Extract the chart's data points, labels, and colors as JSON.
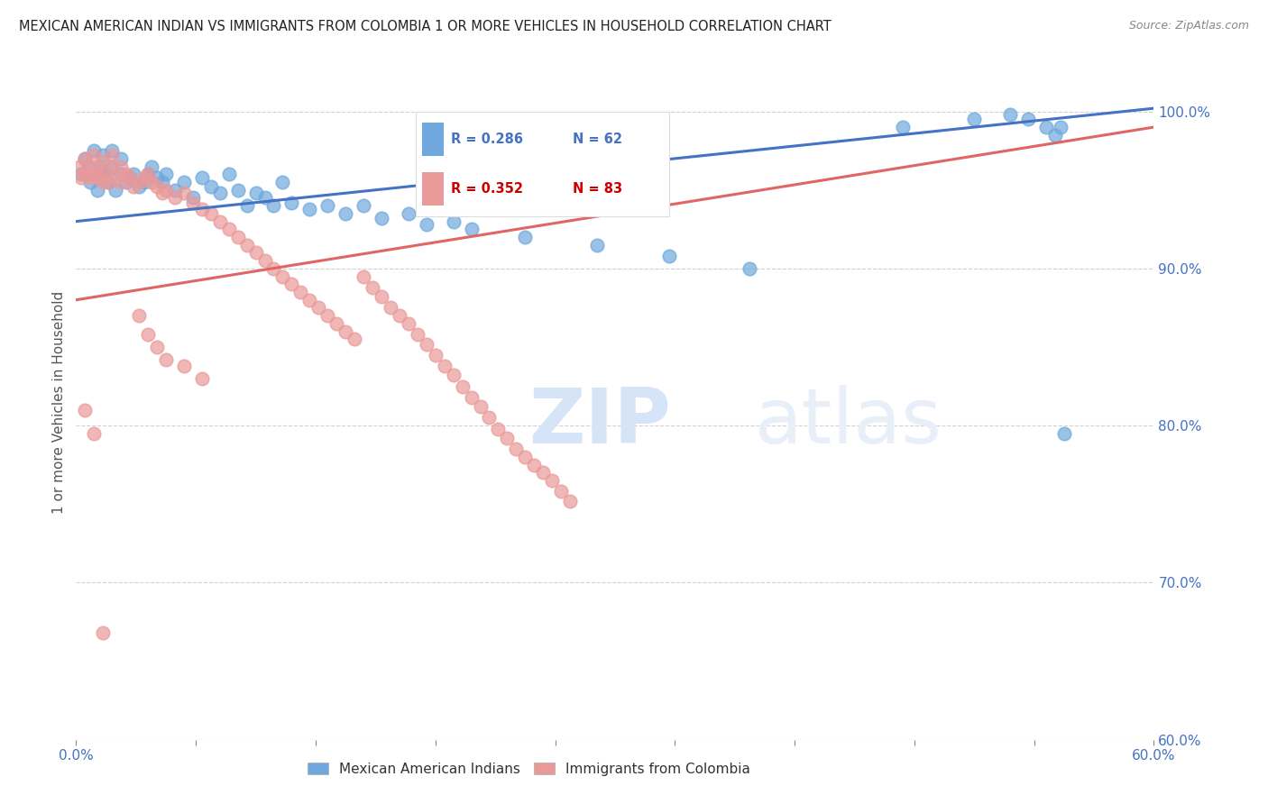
{
  "title": "MEXICAN AMERICAN INDIAN VS IMMIGRANTS FROM COLOMBIA 1 OR MORE VEHICLES IN HOUSEHOLD CORRELATION CHART",
  "source": "Source: ZipAtlas.com",
  "ylabel": "1 or more Vehicles in Household",
  "xlim": [
    0.0,
    0.6
  ],
  "ylim": [
    0.6,
    1.03
  ],
  "color_blue": "#6fa8dc",
  "color_pink": "#ea9999",
  "color_blue_line": "#4472c4",
  "color_pink_line": "#e06666",
  "color_text_blue": "#4472c4",
  "color_text_pink": "#cc0000",
  "color_axis_blue": "#4472c4",
  "watermark_color": "#d6e4f7",
  "background_color": "#ffffff",
  "grid_color": "#cccccc",
  "blue_line_x": [
    0.0,
    0.6
  ],
  "blue_line_y": [
    0.93,
    1.002
  ],
  "pink_line_x": [
    0.0,
    0.6
  ],
  "pink_line_y": [
    0.88,
    0.99
  ],
  "blue_points_x": [
    0.003,
    0.005,
    0.007,
    0.008,
    0.01,
    0.01,
    0.012,
    0.013,
    0.015,
    0.015,
    0.017,
    0.018,
    0.02,
    0.02,
    0.022,
    0.025,
    0.025,
    0.028,
    0.03,
    0.032,
    0.035,
    0.038,
    0.04,
    0.042,
    0.045,
    0.048,
    0.05,
    0.055,
    0.06,
    0.065,
    0.07,
    0.075,
    0.08,
    0.085,
    0.09,
    0.095,
    0.1,
    0.105,
    0.11,
    0.115,
    0.12,
    0.13,
    0.14,
    0.15,
    0.16,
    0.17,
    0.185,
    0.195,
    0.21,
    0.22,
    0.25,
    0.29,
    0.33,
    0.375,
    0.46,
    0.5,
    0.52,
    0.53,
    0.54,
    0.545,
    0.548,
    0.55
  ],
  "blue_points_y": [
    0.96,
    0.97,
    0.965,
    0.955,
    0.96,
    0.975,
    0.95,
    0.965,
    0.958,
    0.972,
    0.96,
    0.955,
    0.965,
    0.975,
    0.95,
    0.96,
    0.97,
    0.955,
    0.958,
    0.96,
    0.952,
    0.955,
    0.96,
    0.965,
    0.958,
    0.955,
    0.96,
    0.95,
    0.955,
    0.945,
    0.958,
    0.952,
    0.948,
    0.96,
    0.95,
    0.94,
    0.948,
    0.945,
    0.94,
    0.955,
    0.942,
    0.938,
    0.94,
    0.935,
    0.94,
    0.932,
    0.935,
    0.928,
    0.93,
    0.925,
    0.92,
    0.915,
    0.908,
    0.9,
    0.99,
    0.995,
    0.998,
    0.995,
    0.99,
    0.985,
    0.99,
    0.795
  ],
  "pink_points_x": [
    0.002,
    0.003,
    0.005,
    0.005,
    0.007,
    0.008,
    0.01,
    0.01,
    0.012,
    0.013,
    0.015,
    0.015,
    0.017,
    0.018,
    0.02,
    0.02,
    0.022,
    0.025,
    0.025,
    0.028,
    0.03,
    0.032,
    0.035,
    0.038,
    0.04,
    0.042,
    0.045,
    0.048,
    0.05,
    0.055,
    0.06,
    0.065,
    0.07,
    0.075,
    0.08,
    0.085,
    0.09,
    0.095,
    0.1,
    0.105,
    0.11,
    0.115,
    0.12,
    0.125,
    0.13,
    0.135,
    0.14,
    0.145,
    0.15,
    0.155,
    0.16,
    0.165,
    0.17,
    0.175,
    0.18,
    0.185,
    0.19,
    0.195,
    0.2,
    0.205,
    0.21,
    0.215,
    0.22,
    0.225,
    0.23,
    0.235,
    0.24,
    0.245,
    0.25,
    0.255,
    0.26,
    0.265,
    0.27,
    0.275,
    0.035,
    0.04,
    0.045,
    0.05,
    0.06,
    0.07,
    0.005,
    0.01,
    0.015
  ],
  "pink_points_y": [
    0.965,
    0.958,
    0.97,
    0.96,
    0.965,
    0.958,
    0.972,
    0.96,
    0.965,
    0.958,
    0.968,
    0.955,
    0.96,
    0.955,
    0.965,
    0.972,
    0.958,
    0.965,
    0.955,
    0.96,
    0.958,
    0.952,
    0.955,
    0.958,
    0.96,
    0.955,
    0.952,
    0.948,
    0.95,
    0.945,
    0.948,
    0.942,
    0.938,
    0.935,
    0.93,
    0.925,
    0.92,
    0.915,
    0.91,
    0.905,
    0.9,
    0.895,
    0.89,
    0.885,
    0.88,
    0.875,
    0.87,
    0.865,
    0.86,
    0.855,
    0.895,
    0.888,
    0.882,
    0.875,
    0.87,
    0.865,
    0.858,
    0.852,
    0.845,
    0.838,
    0.832,
    0.825,
    0.818,
    0.812,
    0.805,
    0.798,
    0.792,
    0.785,
    0.78,
    0.775,
    0.77,
    0.765,
    0.758,
    0.752,
    0.87,
    0.858,
    0.85,
    0.842,
    0.838,
    0.83,
    0.81,
    0.795,
    0.668
  ]
}
